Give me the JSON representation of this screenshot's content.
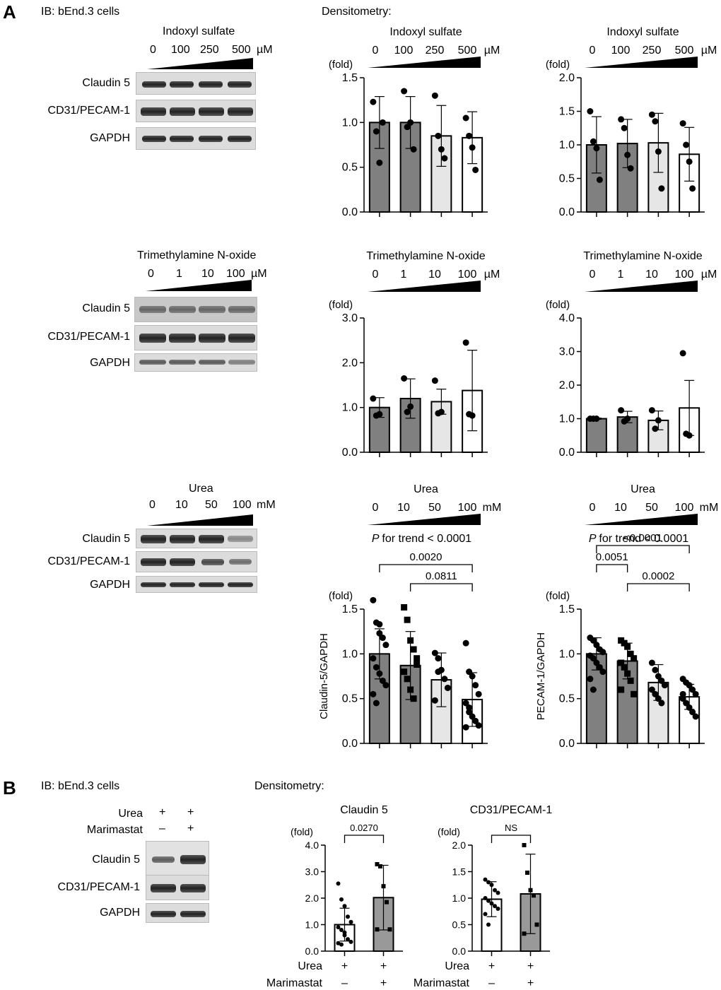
{
  "panels": [
    "A",
    "B"
  ],
  "ib_label": "IB: bEnd.3 cells",
  "densitometry_label": "Densitometry:",
  "blots": {
    "ind": {
      "title": "Indoxyl sulfate",
      "doses": [
        "0",
        "100",
        "250",
        "500"
      ],
      "unit": "µM",
      "rows": [
        "Claudin 5",
        "CD31/PECAM-1",
        "GAPDH"
      ]
    },
    "tma": {
      "title": "Trimethylamine N-oxide",
      "doses": [
        "0",
        "1",
        "10",
        "100"
      ],
      "unit": "µM",
      "rows": [
        "Claudin 5",
        "CD31/PECAM-1",
        "GAPDH"
      ]
    },
    "urea": {
      "title": "Urea",
      "doses": [
        "0",
        "10",
        "50",
        "100"
      ],
      "unit": "mM",
      "rows": [
        "Claudin 5",
        "CD31/PECAM-1",
        "GAPDH"
      ]
    },
    "B": {
      "conditions": [
        "Urea",
        "Marimastat"
      ],
      "signs": [
        [
          "+",
          "+"
        ],
        [
          "–",
          "+"
        ]
      ],
      "rows": [
        "Claudin 5",
        "CD31/PECAM-1",
        "GAPDH"
      ]
    }
  },
  "chart_data": [
    {
      "id": "ind_claudin",
      "type": "bar",
      "header_title": "Indoxyl sulfate",
      "doses": [
        "0",
        "100",
        "250",
        "500"
      ],
      "unit": "µM",
      "ylabel": "",
      "unit_label": "(fold)",
      "ylim": [
        0,
        1.5
      ],
      "yticks": [
        "0.0",
        "0.5",
        "1.0",
        "1.5"
      ],
      "categories": [
        "0",
        "100",
        "250",
        "500"
      ],
      "values": [
        1.0,
        1.0,
        0.85,
        0.83
      ],
      "errors": [
        0.29,
        0.29,
        0.34,
        0.29
      ],
      "points": [
        [
          1.23,
          0.9,
          0.55,
          1.0
        ],
        [
          1.35,
          0.95,
          1.0,
          0.7
        ],
        [
          1.3,
          0.85,
          0.7,
          0.6
        ],
        [
          1.05,
          0.85,
          0.72,
          0.47
        ]
      ],
      "markers": [
        "circle",
        "circle",
        "circle",
        "circle"
      ],
      "fills": [
        "#808080",
        "#808080",
        "#e6e6e6",
        "#ffffff"
      ]
    },
    {
      "id": "ind_pecam",
      "type": "bar",
      "header_title": "Indoxyl sulfate",
      "doses": [
        "0",
        "100",
        "250",
        "500"
      ],
      "unit": "µM",
      "ylabel": "",
      "unit_label": "(fold)",
      "ylim": [
        0,
        2.0
      ],
      "yticks": [
        "0.0",
        "0.5",
        "1.0",
        "1.5",
        "2.0"
      ],
      "categories": [
        "0",
        "100",
        "250",
        "500"
      ],
      "values": [
        1.0,
        1.02,
        1.03,
        0.86
      ],
      "errors": [
        0.42,
        0.36,
        0.44,
        0.4
      ],
      "points": [
        [
          1.5,
          1.05,
          0.95,
          0.48
        ],
        [
          1.38,
          1.25,
          0.85,
          0.65
        ],
        [
          1.45,
          1.35,
          0.9,
          0.35
        ],
        [
          1.32,
          1.0,
          0.75,
          0.35
        ]
      ],
      "markers": [
        "circle",
        "circle",
        "circle",
        "circle"
      ],
      "fills": [
        "#808080",
        "#808080",
        "#e6e6e6",
        "#ffffff"
      ]
    },
    {
      "id": "tma_claudin",
      "type": "bar",
      "header_title": "Trimethylamine N-oxide",
      "doses": [
        "0",
        "1",
        "10",
        "100"
      ],
      "unit": "µM",
      "ylabel": "",
      "unit_label": "(fold)",
      "ylim": [
        0,
        3.0
      ],
      "yticks": [
        "0.0",
        "1.0",
        "2.0",
        "3.0"
      ],
      "categories": [
        "0",
        "1",
        "10",
        "100"
      ],
      "values": [
        1.0,
        1.2,
        1.13,
        1.38
      ],
      "errors": [
        0.22,
        0.44,
        0.28,
        0.9
      ],
      "points": [
        [
          1.2,
          0.82,
          0.85
        ],
        [
          1.65,
          0.9,
          1.02
        ],
        [
          1.6,
          0.87,
          0.9
        ],
        [
          2.45,
          0.85,
          0.82
        ]
      ],
      "markers": [
        "circle",
        "circle",
        "circle",
        "circle"
      ],
      "fills": [
        "#808080",
        "#808080",
        "#e6e6e6",
        "#ffffff"
      ]
    },
    {
      "id": "tma_pecam",
      "type": "bar",
      "header_title": "Trimethylamine N-oxide",
      "doses": [
        "0",
        "1",
        "10",
        "100"
      ],
      "unit": "µM",
      "ylabel": "",
      "unit_label": "(fold)",
      "ylim": [
        0,
        4.0
      ],
      "yticks": [
        "0.0",
        "1.0",
        "2.0",
        "3.0",
        "4.0"
      ],
      "categories": [
        "0",
        "1",
        "10",
        "100"
      ],
      "values": [
        1.0,
        1.05,
        0.95,
        1.32
      ],
      "errors": [
        0.02,
        0.17,
        0.28,
        0.82
      ],
      "points": [
        [
          1.0,
          1.0,
          1.0
        ],
        [
          1.25,
          0.92,
          1.0
        ],
        [
          1.25,
          0.7,
          0.95
        ],
        [
          2.95,
          0.55,
          0.5
        ]
      ],
      "markers": [
        "circle",
        "circle",
        "circle",
        "circle"
      ],
      "fills": [
        "#808080",
        "#808080",
        "#e6e6e6",
        "#ffffff"
      ]
    },
    {
      "id": "urea_claudin",
      "type": "bar",
      "header_title": "Urea",
      "doses": [
        "0",
        "10",
        "50",
        "100"
      ],
      "unit": "mM",
      "trend": "for trend < 0.0001",
      "trend_p": "P",
      "ylabel": "Claudin-5/GAPDH",
      "unit_label": "(fold)",
      "ylim": [
        0,
        1.5
      ],
      "yticks": [
        "0.0",
        "0.5",
        "1.0",
        "1.5"
      ],
      "categories": [
        "0",
        "10",
        "50",
        "100"
      ],
      "values": [
        1.0,
        0.87,
        0.71,
        0.49
      ],
      "errors": [
        0.28,
        0.38,
        0.3,
        0.3
      ],
      "points": [
        [
          1.6,
          1.35,
          1.33,
          1.18,
          1.1,
          0.95,
          0.85,
          0.78,
          0.7,
          0.65,
          0.55,
          0.45,
          1.23
        ],
        [
          1.52,
          1.38,
          1.15,
          1.05,
          0.95,
          0.8,
          0.72,
          0.6,
          0.5,
          0.88
        ],
        [
          1.01,
          0.95,
          0.82,
          0.72,
          0.62,
          0.48,
          0.8
        ],
        [
          1.12,
          0.8,
          0.75,
          0.65,
          0.55,
          0.45,
          0.35,
          0.3,
          0.25,
          0.2,
          0.18,
          0.4
        ]
      ],
      "markers": [
        "circle",
        "square",
        "circle",
        "circle"
      ],
      "fills": [
        "#808080",
        "#808080",
        "#e6e6e6",
        "#ffffff"
      ],
      "sig": [
        {
          "from": 0,
          "to": 3,
          "label": "0.0020",
          "level": 1
        },
        {
          "from": 1,
          "to": 3,
          "label": "0.0811",
          "level": 0
        }
      ]
    },
    {
      "id": "urea_pecam",
      "type": "bar",
      "header_title": "Urea",
      "doses": [
        "0",
        "10",
        "50",
        "100"
      ],
      "unit": "mM",
      "trend": "for trend < 0.0001",
      "trend_p": "P",
      "ylabel": "PECAM-1/GAPDH",
      "unit_label": "(fold)",
      "ylim": [
        0,
        1.5
      ],
      "yticks": [
        "0.0",
        "0.5",
        "1.0",
        "1.5"
      ],
      "categories": [
        "0",
        "10",
        "50",
        "100"
      ],
      "values": [
        1.0,
        0.92,
        0.68,
        0.52
      ],
      "errors": [
        0.18,
        0.2,
        0.2,
        0.14
      ],
      "points": [
        [
          1.18,
          1.15,
          1.1,
          1.05,
          1.02,
          0.98,
          0.95,
          0.9,
          0.85,
          0.8,
          0.72,
          0.6
        ],
        [
          1.15,
          1.12,
          1.08,
          1.0,
          0.95,
          0.9,
          0.85,
          0.78,
          0.7,
          0.55,
          0.6
        ],
        [
          0.9,
          0.82,
          0.75,
          0.7,
          0.65,
          0.6,
          0.55,
          0.5,
          0.45
        ],
        [
          0.72,
          0.68,
          0.65,
          0.6,
          0.55,
          0.5,
          0.45,
          0.4,
          0.35,
          0.3,
          0.55
        ]
      ],
      "markers": [
        "circle",
        "square",
        "circle",
        "circle"
      ],
      "fills": [
        "#808080",
        "#808080",
        "#e6e6e6",
        "#ffffff"
      ],
      "sig": [
        {
          "from": 0,
          "to": 1,
          "label": "0.0051",
          "level": 1
        },
        {
          "from": 1,
          "to": 3,
          "label": "0.0002",
          "level": 0
        },
        {
          "from": 0,
          "to": 3,
          "label": "<0.0001",
          "level": 2
        }
      ]
    },
    {
      "id": "B_claudin",
      "type": "bar",
      "header_title": "Claudin 5",
      "ylabel": "",
      "unit_label": "(fold)",
      "ylim": [
        0,
        4.0
      ],
      "yticks": [
        "0.0",
        "1.0",
        "2.0",
        "3.0",
        "4.0"
      ],
      "categories": [
        "Urea +, Marimastat –",
        "Urea +, Marimastat +"
      ],
      "values": [
        1.0,
        2.02
      ],
      "errors": [
        0.62,
        1.22
      ],
      "points": [
        [
          2.55,
          1.95,
          1.7,
          1.3,
          1.1,
          0.9,
          0.8,
          0.6,
          0.45,
          0.35,
          0.3,
          0.25,
          0.7
        ],
        [
          3.28,
          3.2,
          2.45,
          1.85,
          0.82,
          0.82
        ]
      ],
      "markers": [
        "circle",
        "square"
      ],
      "fills": [
        "#ffffff",
        "#999999"
      ],
      "sig": [
        {
          "from": 0,
          "to": 1,
          "label": "0.0270",
          "level": 0
        }
      ],
      "x_rows": [
        {
          "label": "Urea",
          "signs": [
            "+",
            "+"
          ]
        },
        {
          "label": "Marimastat",
          "signs": [
            "–",
            "+"
          ]
        }
      ]
    },
    {
      "id": "B_pecam",
      "type": "bar",
      "header_title": "CD31/PECAM-1",
      "ylabel": "",
      "unit_label": "(fold)",
      "ylim": [
        0,
        2.0
      ],
      "yticks": [
        "0.0",
        "0.5",
        "1.0",
        "1.5",
        "2.0"
      ],
      "categories": [
        "Urea +, Marimastat –",
        "Urea +, Marimastat +"
      ],
      "values": [
        0.98,
        1.08
      ],
      "errors": [
        0.33,
        0.75
      ],
      "points": [
        [
          1.35,
          1.3,
          1.25,
          1.15,
          1.1,
          1.0,
          0.95,
          0.9,
          0.85,
          0.8,
          0.7,
          0.5
        ],
        [
          2.0,
          1.48,
          1.15,
          1.05,
          0.5,
          0.33
        ]
      ],
      "markers": [
        "circle",
        "square"
      ],
      "fills": [
        "#ffffff",
        "#999999"
      ],
      "sig": [
        {
          "from": 0,
          "to": 1,
          "label": "NS",
          "level": 0
        }
      ],
      "x_rows": [
        {
          "label": "Urea",
          "signs": [
            "+",
            "+"
          ]
        },
        {
          "label": "Marimastat",
          "signs": [
            "–",
            "+"
          ]
        }
      ]
    }
  ]
}
